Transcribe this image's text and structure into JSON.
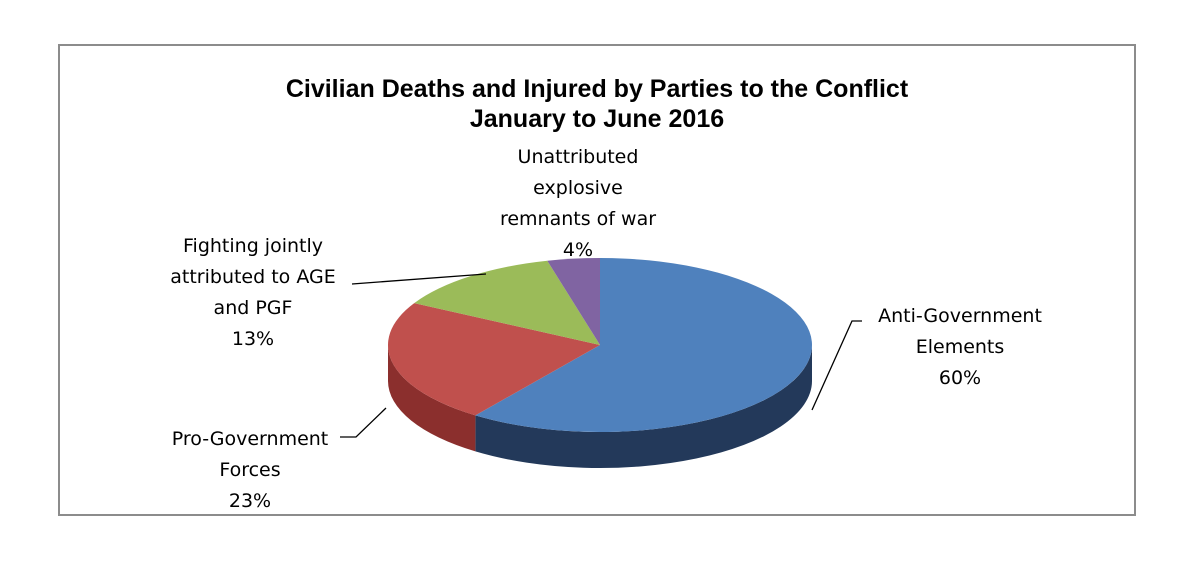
{
  "chart_data": {
    "type": "pie",
    "title": [
      "Civilian Deaths and Injured by Parties to the Conflict",
      "January to June 2016"
    ],
    "slices": [
      {
        "label_lines": [
          "Anti-Government",
          "Elements"
        ],
        "value_label": "60%",
        "value": 60,
        "color": "#4F81BD",
        "side_color": "#23395A"
      },
      {
        "label_lines": [
          "Pro-Government",
          "Forces"
        ],
        "value_label": "23%",
        "value": 23,
        "color": "#C0504D",
        "side_color": "#8B2F2D"
      },
      {
        "label_lines": [
          "Fighting jointly",
          "attributed to AGE",
          "and PGF"
        ],
        "value_label": "13%",
        "value": 13,
        "color": "#9BBB59",
        "side_color": "#6E8B3D"
      },
      {
        "label_lines": [
          "Unattributed",
          "explosive",
          "remnants of war"
        ],
        "value_label": "4%",
        "value": 4,
        "color": "#8064A2",
        "side_color": "#5B4475"
      }
    ],
    "legend": "none",
    "style": "3d-pie"
  }
}
